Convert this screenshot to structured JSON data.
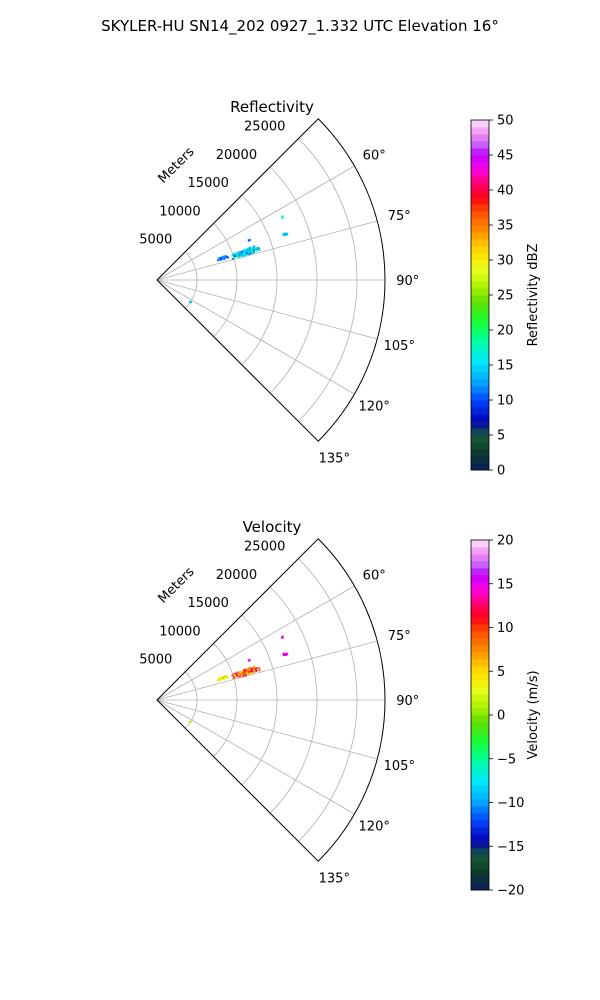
{
  "figure": {
    "suptitle": "SKYLER-HU  SN14_202  0927_1.332 UTC Elevation 16°"
  },
  "chart_data": [
    {
      "type": "polar-sector",
      "title": "Reflectivity",
      "radial_label": "Meters",
      "radial_range": [
        0,
        28500
      ],
      "radial_ticks": [
        5000,
        10000,
        15000,
        20000,
        25000
      ],
      "azimuth_range_deg": [
        45,
        135
      ],
      "azimuth_ticks_deg": [
        45,
        60,
        75,
        90,
        105,
        120,
        135
      ],
      "angle_tick_labels": [
        "60°",
        "75°",
        "90°",
        "105°",
        "120°",
        "135°"
      ],
      "radial_tick_labels": [
        "5000",
        "10000",
        "15000",
        "20000",
        "25000"
      ],
      "grid": true,
      "colorbar": {
        "label": "Reflectivity dBZ",
        "range": [
          0,
          50
        ],
        "ticks": [
          0,
          5,
          10,
          15,
          20,
          25,
          30,
          35,
          40,
          45,
          50
        ],
        "tick_labels": [
          "0",
          "5",
          "10",
          "15",
          "20",
          "25",
          "30",
          "35",
          "40",
          "45",
          "50"
        ]
      },
      "data_summary": "main echo cluster near azimuth 70–74°, range 9000–14000 m, values 10–20 dBZ; small echoes near 63°/17500 m (~18 dBZ), 70°/17000 m (~14 dBZ), 123°/5000 m (~13 dBZ)"
    },
    {
      "type": "polar-sector",
      "title": "Velocity",
      "radial_label": "Meters",
      "radial_range": [
        0,
        28500
      ],
      "radial_ticks": [
        5000,
        10000,
        15000,
        20000,
        25000
      ],
      "azimuth_range_deg": [
        45,
        135
      ],
      "azimuth_ticks_deg": [
        45,
        60,
        75,
        90,
        105,
        120,
        135
      ],
      "angle_tick_labels": [
        "60°",
        "75°",
        "90°",
        "105°",
        "120°",
        "135°"
      ],
      "radial_tick_labels": [
        "5000",
        "10000",
        "15000",
        "20000",
        "25000"
      ],
      "grid": true,
      "colorbar": {
        "label": "Velocity (m/s)",
        "range": [
          -20,
          20
        ],
        "ticks": [
          -20,
          -15,
          -10,
          -5,
          0,
          5,
          10,
          15,
          20
        ],
        "tick_labels": [
          "−20",
          "−15",
          "−10",
          "−5",
          "0",
          "5",
          "10",
          "15",
          "20"
        ]
      },
      "data_summary": "main cluster near azimuth 70–74°, range 9000–14000 m, velocities 3–15 m/s; small echoes near 63°/17500 m (~15 m/s), 70°/17000 m (~15 m/s), 123°/5000 m (~1 m/s)"
    }
  ],
  "colors": {
    "grid": "#b0b0b0",
    "axis": "#000000"
  }
}
